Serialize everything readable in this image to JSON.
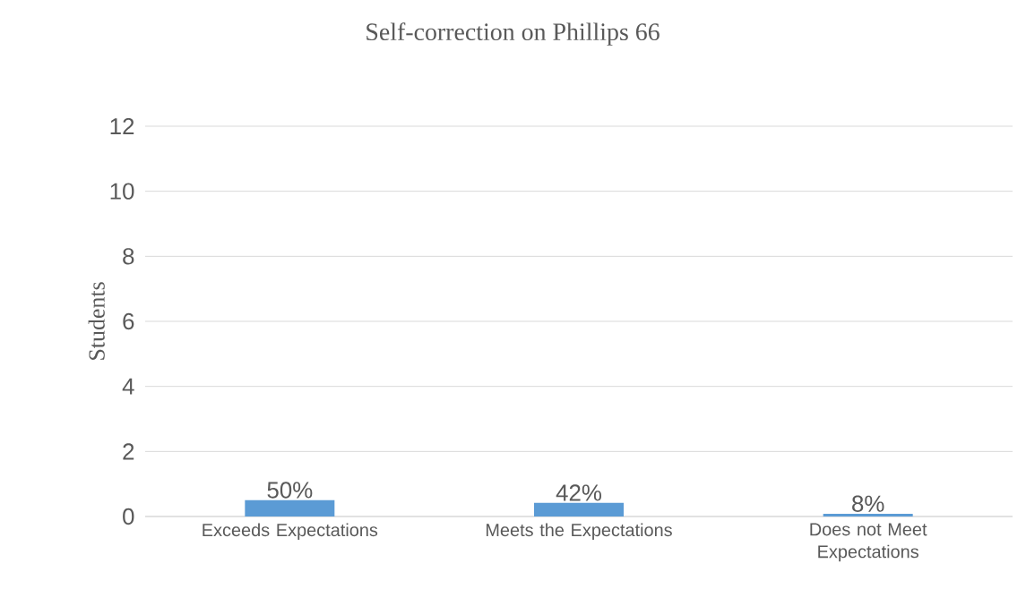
{
  "chart_data": {
    "type": "bar",
    "title": "Self-correction on Phillips 66",
    "ylabel": "Students",
    "categories": [
      "Exceeds Expectations",
      "Meets the Expectations",
      "Does not Meet Expectations"
    ],
    "values": [
      0.5,
      0.42,
      0.08
    ],
    "value_labels": [
      "50%",
      "42%",
      "8%"
    ],
    "color": "#5b9bd5",
    "ylim": [
      0,
      12
    ],
    "yticks": [
      0,
      2,
      4,
      6,
      8,
      10,
      12
    ],
    "grid": "y"
  }
}
